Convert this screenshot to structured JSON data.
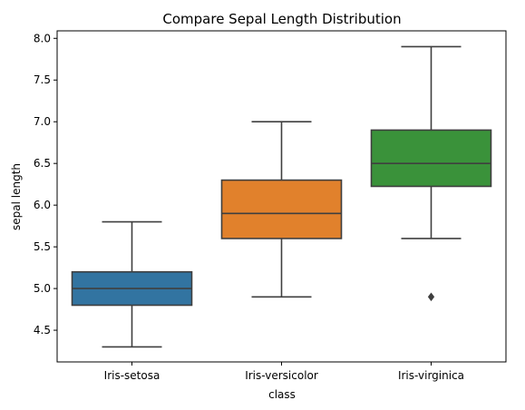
{
  "chart_data": {
    "type": "box",
    "title": "Compare Sepal Length Distribution",
    "xlabel": "class",
    "ylabel": "sepal length",
    "ylim": [
      4.12,
      8.09
    ],
    "yticks": [
      "4.5",
      "5.0",
      "5.5",
      "6.0",
      "6.5",
      "7.0",
      "7.5",
      "8.0"
    ],
    "grid": false,
    "categories": [
      "Iris-setosa",
      "Iris-versicolor",
      "Iris-virginica"
    ],
    "boxes": [
      {
        "category": "Iris-setosa",
        "whisker_low": 4.3,
        "q1": 4.8,
        "median": 5.0,
        "q3": 5.2,
        "whisker_high": 5.8,
        "outliers": [],
        "color": "#3274a1"
      },
      {
        "category": "Iris-versicolor",
        "whisker_low": 4.9,
        "q1": 5.6,
        "median": 5.9,
        "q3": 6.3,
        "whisker_high": 7.0,
        "outliers": [],
        "color": "#e1812c"
      },
      {
        "category": "Iris-virginica",
        "whisker_low": 5.6,
        "q1": 6.225,
        "median": 6.5,
        "q3": 6.9,
        "whisker_high": 7.9,
        "outliers": [
          4.9
        ],
        "color": "#3a923a"
      }
    ]
  }
}
